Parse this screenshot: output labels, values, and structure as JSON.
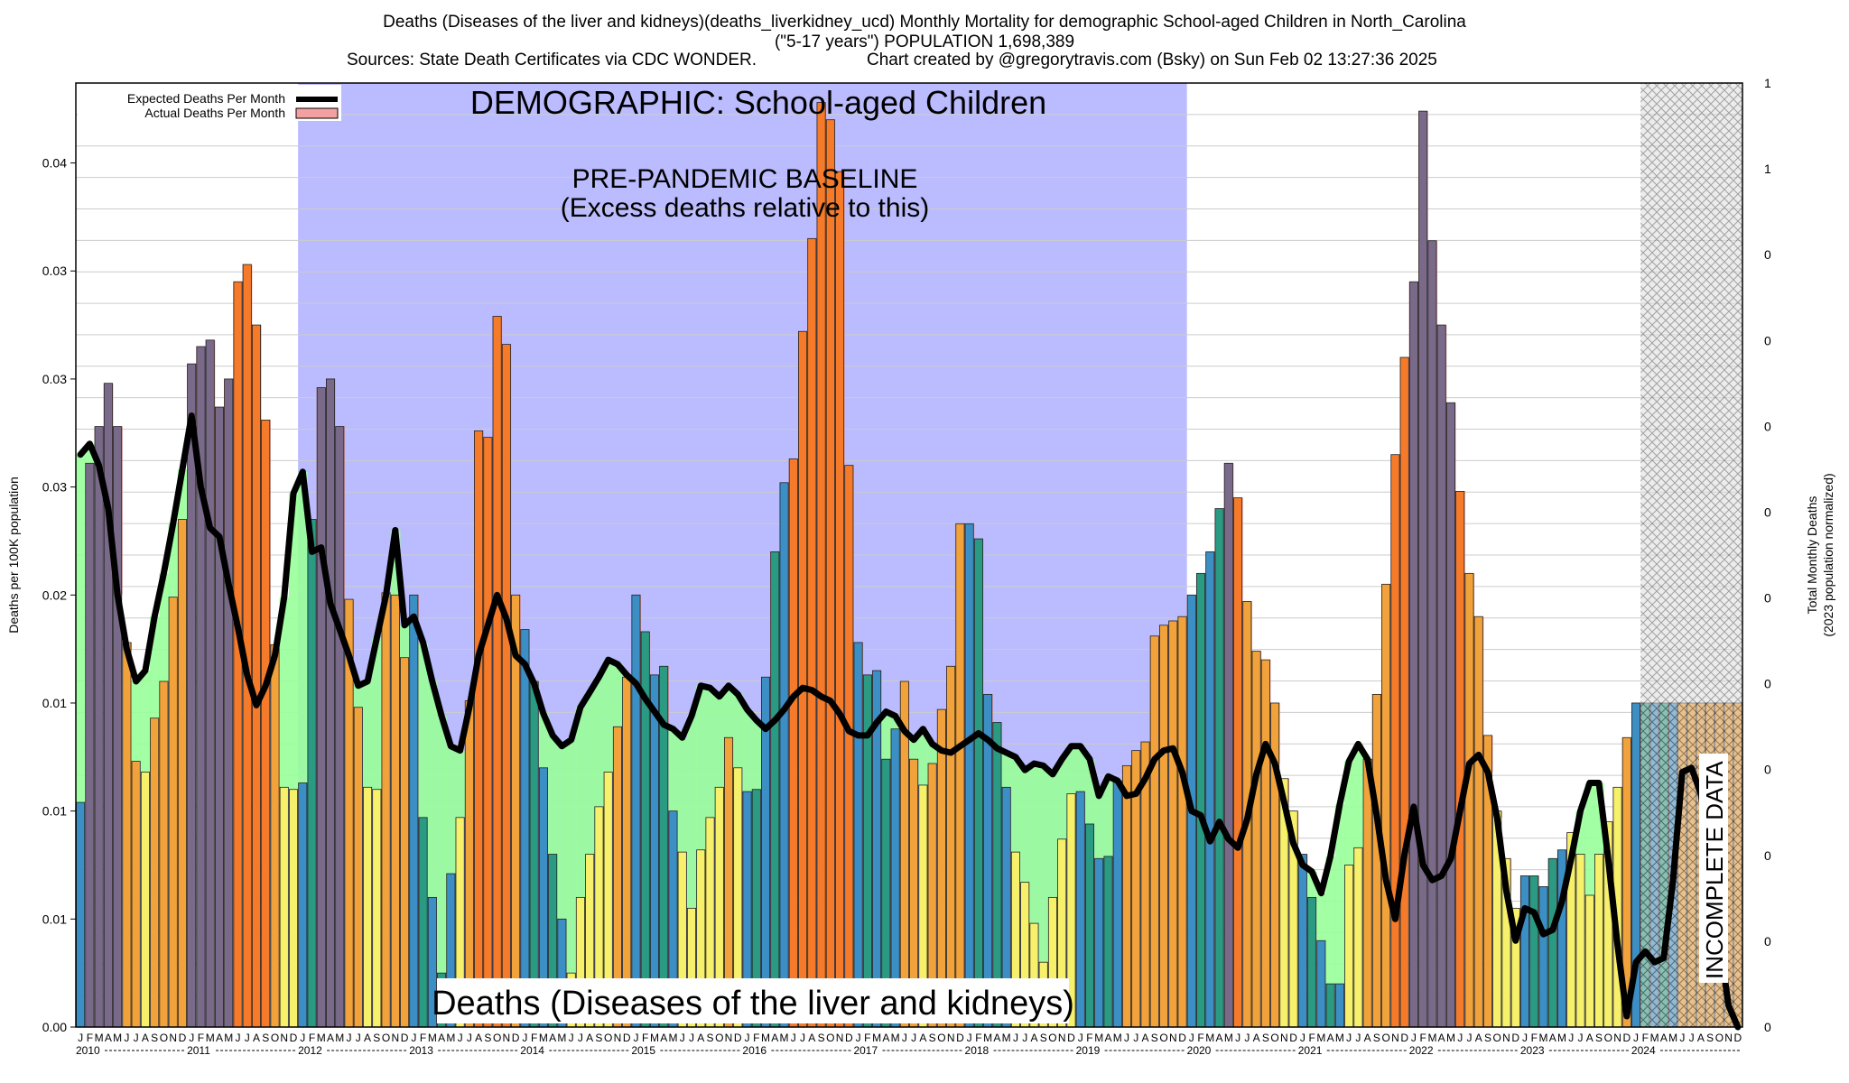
{
  "header": {
    "title_line1": "Deaths (Diseases of the liver and kidneys)(deaths_liverkidney_ucd) Monthly Mortality for demographic School-aged Children in North_Carolina",
    "title_line2": "(\"5-17 years\") POPULATION 1,698,389",
    "sources": "Sources: State Death Certificates via CDC WONDER.",
    "credit": "Chart created by @gregorytravis.com (Bsky) on Sun Feb 02 13:27:36 2025"
  },
  "colors": {
    "baseline_region": "#bbbbff",
    "area_fill": "#99ff99",
    "bar_low": "#f7f06a",
    "bar_mid": "#f2a23a",
    "bar_high": "#f57b2a",
    "bar_blue": "#3b8fc4",
    "bar_teal": "#2a9a82",
    "expected_line": "#000000",
    "actual_fill": "#f4a0a0"
  },
  "chart_data": {
    "type": "bar",
    "title": "Deaths (Diseases of the liver and kidneys)",
    "demographic_label": "DEMOGRAPHIC: School-aged Children",
    "baseline_label_line1": "PRE-PANDEMIC BASELINE",
    "baseline_label_line2": "(Excess deaths relative to this)",
    "baseline_start_month_index": 24,
    "baseline_end_month_index": 120,
    "incomplete_label": "INCOMPLETE DATA",
    "incomplete_start_month_index": 169,
    "ylabel_left": "Deaths per 100K population",
    "ylabel_right_line1": "Total Monthly Deaths",
    "ylabel_right_line2": "(2023 population normalized)",
    "ylim": [
      0,
      0.0437
    ],
    "y_ticks_values": [
      0,
      0.005,
      0.01,
      0.015,
      0.02,
      0.025,
      0.03,
      0.035,
      0.04
    ],
    "y_ticks_labels": [
      "0.00",
      "0.01",
      "0.01",
      "0.01",
      "0.02",
      "0.03",
      "0.03",
      "0.03",
      "0.04"
    ],
    "right_ticks_labels": [
      "0",
      "0",
      "0",
      "0",
      "0",
      "0",
      "0",
      "0",
      "0",
      "0",
      "1",
      "1"
    ],
    "legend": [
      "Expected Deaths Per Month",
      "Actual Deaths Per Month"
    ],
    "month_letters": [
      "J",
      "F",
      "M",
      "A",
      "M",
      "J",
      "J",
      "A",
      "S",
      "O",
      "N",
      "D"
    ],
    "years": [
      "2010",
      "2011",
      "2012",
      "2013",
      "2014",
      "2015",
      "2016",
      "2017",
      "2018",
      "2019",
      "2020",
      "2021",
      "2022",
      "2023",
      "2024"
    ],
    "actual": [
      0.0104,
      0.0261,
      0.0278,
      0.0298,
      0.0278,
      0.0178,
      0.0123,
      0.0118,
      0.0143,
      0.016,
      0.0199,
      0.0235,
      0.0307,
      0.0315,
      0.0318,
      0.0287,
      0.03,
      0.0345,
      0.0353,
      0.0325,
      0.0281,
      0.0177,
      0.0111,
      0.011,
      0.0113,
      0.0235,
      0.0296,
      0.03,
      0.0278,
      0.0198,
      0.0148,
      0.0111,
      0.011,
      0.0201,
      0.02,
      0.0171,
      0.02,
      0.0097,
      0.006,
      0.0025,
      0.0071,
      0.0097,
      0.0151,
      0.0276,
      0.0273,
      0.0329,
      0.0316,
      0.02,
      0.0184,
      0.016,
      0.012,
      0.008,
      0.005,
      0.0025,
      0.006,
      0.008,
      0.0102,
      0.0118,
      0.0139,
      0.0162,
      0.02,
      0.0183,
      0.0163,
      0.0167,
      0.01,
      0.0081,
      0.0055,
      0.0082,
      0.0097,
      0.0111,
      0.0134,
      0.012,
      0.0109,
      0.011,
      0.0162,
      0.022,
      0.0252,
      0.0263,
      0.0322,
      0.0365,
      0.0428,
      0.042,
      0.0396,
      0.026,
      0.0178,
      0.0163,
      0.0165,
      0.0124,
      0.0138,
      0.016,
      0.0124,
      0.0112,
      0.0122,
      0.0147,
      0.0167,
      0.0233,
      0.0233,
      0.0226,
      0.0154,
      0.0141,
      0.0111,
      0.0081,
      0.0067,
      0.0048,
      0.003,
      0.006,
      0.0087,
      0.0108,
      0.0109,
      0.0094,
      0.0078,
      0.0079,
      0.0114,
      0.0121,
      0.0128,
      0.0132,
      0.0181,
      0.0186,
      0.0188,
      0.019,
      0.02,
      0.021,
      0.022,
      0.024,
      0.0261,
      0.0245,
      0.0197,
      0.0174,
      0.017,
      0.015,
      0.0115,
      0.01,
      0.008,
      0.006,
      0.004,
      0.002,
      0.002,
      0.0075,
      0.0083,
      0.0124,
      0.0154,
      0.0205,
      0.0265,
      0.031,
      0.0345,
      0.0424,
      0.0364,
      0.0325,
      0.0289,
      0.0248,
      0.021,
      0.019,
      0.0135,
      0.01,
      0.0078,
      0.0055,
      0.007,
      0.007,
      0.0065,
      0.0078,
      0.0082,
      0.009,
      0.008,
      0.0061,
      0.008,
      0.0095,
      0.0111,
      0.0134,
      0.015,
      0.015,
      0.015,
      0.015,
      0.015,
      0.015,
      0.015,
      0.015,
      0.015,
      0.015,
      0.015,
      0.015
    ],
    "expected": [
      0.0265,
      0.027,
      0.026,
      0.024,
      0.02,
      0.0175,
      0.016,
      0.0165,
      0.019,
      0.021,
      0.0233,
      0.0258,
      0.0283,
      0.025,
      0.0231,
      0.0227,
      0.0205,
      0.0185,
      0.0163,
      0.0149,
      0.0158,
      0.0172,
      0.0199,
      0.0247,
      0.0257,
      0.022,
      0.0222,
      0.0196,
      0.0184,
      0.0172,
      0.0158,
      0.016,
      0.018,
      0.02,
      0.023,
      0.0186,
      0.019,
      0.0178,
      0.016,
      0.0144,
      0.013,
      0.0128,
      0.0148,
      0.0172,
      0.0186,
      0.02,
      0.0189,
      0.0172,
      0.0168,
      0.0159,
      0.0145,
      0.0135,
      0.013,
      0.0133,
      0.0148,
      0.0155,
      0.0162,
      0.017,
      0.0168,
      0.0163,
      0.0159,
      0.0152,
      0.0146,
      0.014,
      0.0138,
      0.0134,
      0.0144,
      0.0158,
      0.0157,
      0.0153,
      0.0158,
      0.0154,
      0.0147,
      0.0142,
      0.0138,
      0.0142,
      0.0147,
      0.0153,
      0.0157,
      0.0156,
      0.0153,
      0.0151,
      0.0145,
      0.0137,
      0.0135,
      0.0135,
      0.0141,
      0.0146,
      0.0144,
      0.0137,
      0.0133,
      0.0138,
      0.0131,
      0.0128,
      0.0127,
      0.013,
      0.0133,
      0.0136,
      0.0133,
      0.0129,
      0.0127,
      0.0125,
      0.0119,
      0.0122,
      0.0121,
      0.0117,
      0.0124,
      0.013,
      0.013,
      0.0124,
      0.0107,
      0.0116,
      0.0114,
      0.0107,
      0.0108,
      0.0115,
      0.0124,
      0.0128,
      0.0129,
      0.0118,
      0.01,
      0.0098,
      0.0086,
      0.0095,
      0.0087,
      0.0083,
      0.0096,
      0.0117,
      0.0131,
      0.0122,
      0.0104,
      0.0085,
      0.0075,
      0.0072,
      0.0062,
      0.0079,
      0.0103,
      0.0123,
      0.0131,
      0.0124,
      0.0098,
      0.0068,
      0.005,
      0.008,
      0.0102,
      0.0075,
      0.0068,
      0.007,
      0.0078,
      0.01,
      0.0122,
      0.0126,
      0.0118,
      0.0097,
      0.0063,
      0.004,
      0.0055,
      0.0053,
      0.0043,
      0.0045,
      0.0058,
      0.0078,
      0.01,
      0.0113,
      0.0113,
      0.0078,
      0.0038,
      0.0005,
      0.003,
      0.0035,
      0.003,
      0.0032,
      0.0068,
      0.0118,
      0.012,
      0.0108,
      0.008,
      0.004,
      0.001,
      0.0
    ]
  }
}
